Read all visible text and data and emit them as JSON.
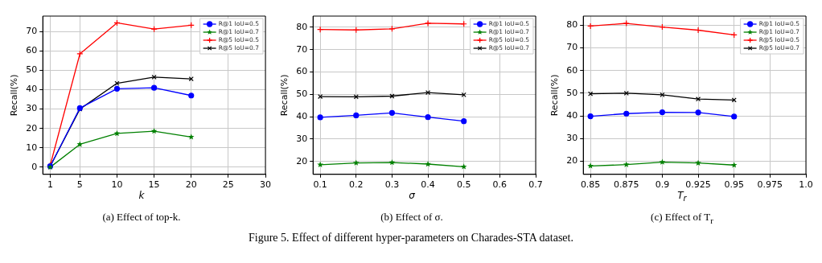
{
  "chart_data": [
    {
      "type": "line",
      "xlabel": "k",
      "ylabel": "Recall(%)",
      "annotations": [
        "(a) Effect of top-k."
      ],
      "x": [
        1,
        5,
        10,
        15,
        20
      ],
      "xlim": [
        0,
        30
      ],
      "xticks": [
        1,
        5,
        10,
        15,
        20,
        25,
        30
      ],
      "ylim": [
        -3.7,
        78
      ],
      "yticks": [
        0,
        10,
        20,
        30,
        40,
        50,
        60,
        70
      ],
      "grid": true,
      "legend": "top right",
      "series": [
        {
          "name": "R@1 IoU=0.5",
          "color": "#0000ff",
          "marker": "circle",
          "values": [
            0.5,
            30.5,
            40.5,
            41,
            37
          ]
        },
        {
          "name": "R@1 IoU=0.7",
          "color": "#008000",
          "marker": "star",
          "values": [
            0,
            11.8,
            17.4,
            18.6,
            15.6
          ]
        },
        {
          "name": "R@5 IoU=0.5",
          "color": "#ff0000",
          "marker": "cross",
          "values": [
            1,
            58.5,
            74.5,
            71.3,
            73.3
          ]
        },
        {
          "name": "R@5 IoU=0.7",
          "color": "#000000",
          "marker": "x",
          "values": [
            0.5,
            30,
            43.3,
            46.5,
            45.6
          ]
        }
      ]
    },
    {
      "type": "line",
      "xlabel": "σ",
      "ylabel": "Recall(%)",
      "annotations": [
        "(b) Effect of σ.",
        "Figure 5. Effect of different hyper-parameters on Charades-STA dataset."
      ],
      "x": [
        0.1,
        0.2,
        0.3,
        0.4,
        0.5
      ],
      "xlim": [
        0.08,
        0.7
      ],
      "xticks": [
        0.1,
        0.2,
        0.3,
        0.4,
        0.5,
        0.6,
        0.7
      ],
      "ylim": [
        14.2,
        85
      ],
      "yticks": [
        20,
        30,
        40,
        50,
        60,
        70,
        80
      ],
      "grid": true,
      "legend": "top right",
      "series": [
        {
          "name": "R@1 IoU=0.5",
          "color": "#0000ff",
          "marker": "circle",
          "values": [
            39.7,
            40.6,
            41.7,
            39.8,
            38
          ]
        },
        {
          "name": "R@1 IoU=0.7",
          "color": "#008000",
          "marker": "star",
          "values": [
            18.5,
            19.3,
            19.5,
            18.8,
            17.6
          ]
        },
        {
          "name": "R@5 IoU=0.5",
          "color": "#ff0000",
          "marker": "cross",
          "values": [
            79,
            78.8,
            79.3,
            81.8,
            81.5
          ]
        },
        {
          "name": "R@5 IoU=0.7",
          "color": "#000000",
          "marker": "x",
          "values": [
            49,
            48.9,
            49.2,
            50.8,
            49.8
          ]
        }
      ]
    },
    {
      "type": "line",
      "xlabel": "T$_{r}$",
      "ylabel": "Recall(%)",
      "annotations": [
        "(c) Effect of T$_{r}$"
      ],
      "x": [
        0.85,
        0.875,
        0.9,
        0.925,
        0.95
      ],
      "xlim": [
        0.845,
        1
      ],
      "xticks": [
        0.85,
        0.875,
        0.9,
        0.925,
        0.95,
        0.975,
        {
          "value": 1,
          "label": "1.0"
        }
      ],
      "ylim": [
        14.2,
        84
      ],
      "yticks": [
        20,
        30,
        40,
        50,
        60,
        70,
        80
      ],
      "grid": true,
      "legend": "top right",
      "series": [
        {
          "name": "R@1 IoU=0.5",
          "color": "#0000ff",
          "marker": "circle",
          "values": [
            39.8,
            41,
            41.6,
            41.5,
            39.7
          ]
        },
        {
          "name": "R@1 IoU=0.7",
          "color": "#008000",
          "marker": "star",
          "values": [
            17.9,
            18.5,
            19.6,
            19.2,
            18.3
          ]
        },
        {
          "name": "R@5 IoU=0.5",
          "color": "#ff0000",
          "marker": "cross",
          "values": [
            79.6,
            80.8,
            79.2,
            77.8,
            75.7
          ]
        },
        {
          "name": "R@5 IoU=0.7",
          "color": "#000000",
          "marker": "x",
          "values": [
            49.7,
            50,
            49.3,
            47.4,
            47
          ]
        }
      ]
    }
  ]
}
